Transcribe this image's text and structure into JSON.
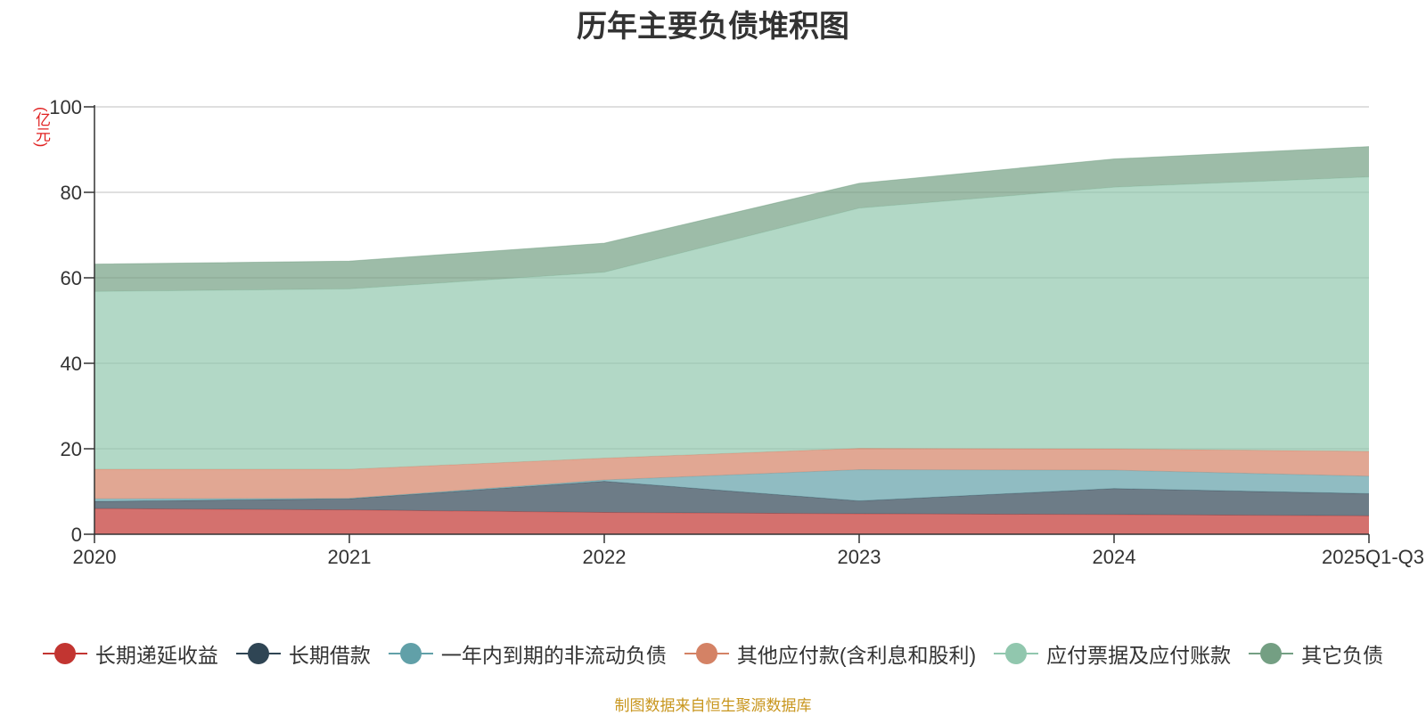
{
  "chart_data": {
    "type": "area",
    "stacked": true,
    "title": "历年主要负债堆积图",
    "unit_label": "(亿元)",
    "categories": [
      "2020",
      "2021",
      "2022",
      "2023",
      "2024",
      "2025Q1-Q3"
    ],
    "ylim": [
      0,
      100
    ],
    "yticks": [
      0,
      20,
      40,
      60,
      80,
      100
    ],
    "grid": true,
    "legend_position": "bottom",
    "series": [
      {
        "name": "长期递延收益",
        "color": "#c23531",
        "values": [
          6.0,
          5.7,
          5.1,
          4.8,
          4.6,
          4.3
        ]
      },
      {
        "name": "长期借款",
        "color": "#2f4554",
        "values": [
          1.7,
          2.6,
          7.3,
          3.0,
          6.1,
          5.2
        ]
      },
      {
        "name": "一年内到期的非流动负债",
        "color": "#61a0a8",
        "values": [
          0.6,
          0.1,
          0.3,
          7.3,
          4.3,
          4.1
        ]
      },
      {
        "name": "其他应付款(含利息和股利)",
        "color": "#d48265",
        "values": [
          6.9,
          6.8,
          5.1,
          5.0,
          5.0,
          5.8
        ]
      },
      {
        "name": "应付票据及应付账款",
        "color": "#91c7ae",
        "values": [
          41.6,
          42.2,
          43.5,
          56.2,
          61.2,
          64.2
        ]
      },
      {
        "name": "其它负债",
        "color": "#749f83",
        "values": [
          6.4,
          6.5,
          6.8,
          5.8,
          6.6,
          7.1
        ]
      }
    ],
    "source_note": "制图数据来自恒生聚源数据库"
  }
}
